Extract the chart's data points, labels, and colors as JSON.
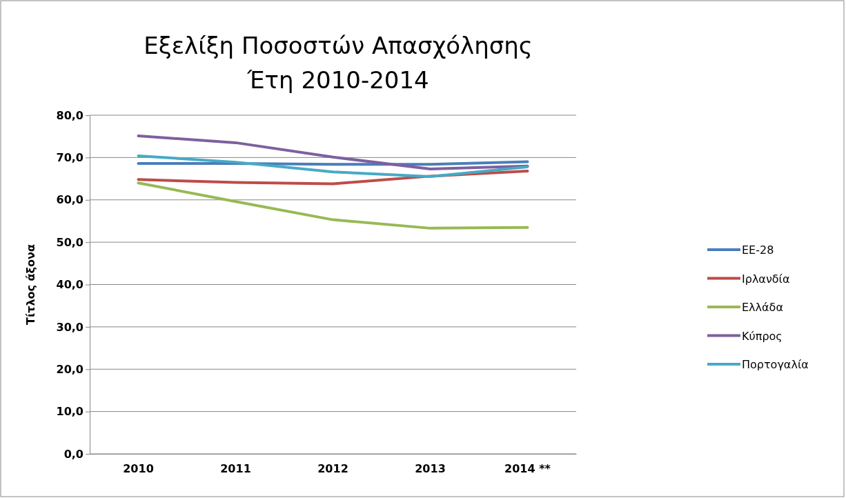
{
  "chart_data": {
    "type": "line",
    "title": "Εξελίξη Ποσοστών Απασχόλησης\nΈτη 2010-2014",
    "ylabel": "Τίτλος άξονα",
    "categories": [
      "2010",
      "2011",
      "2012",
      "2013",
      "2014 **"
    ],
    "series": [
      {
        "name": "ΕΕ-28",
        "color": "#4a7ebb",
        "values": [
          68.6,
          68.6,
          68.4,
          68.4,
          69.0
        ]
      },
      {
        "name": "Ιρλανδία",
        "color": "#be4b48",
        "values": [
          64.8,
          64.1,
          63.8,
          65.6,
          66.8
        ]
      },
      {
        "name": "Ελλάδα",
        "color": "#98b954",
        "values": [
          64.0,
          59.6,
          55.3,
          53.3,
          53.5
        ]
      },
      {
        "name": "Κύπρος",
        "color": "#7d60a0",
        "values": [
          75.1,
          73.5,
          70.1,
          67.3,
          68.0
        ]
      },
      {
        "name": "Πορτογαλία",
        "color": "#46aac5",
        "values": [
          70.4,
          68.9,
          66.6,
          65.5,
          67.8
        ]
      }
    ],
    "ylim": [
      0,
      80
    ],
    "yticks": [
      {
        "value": 0,
        "label": "0,0"
      },
      {
        "value": 10,
        "label": "10,0"
      },
      {
        "value": 20,
        "label": "20,0"
      },
      {
        "value": 30,
        "label": "30,0"
      },
      {
        "value": 40,
        "label": "40,0"
      },
      {
        "value": 50,
        "label": "50,0"
      },
      {
        "value": 60,
        "label": "60,0"
      },
      {
        "value": 70,
        "label": "70,0"
      },
      {
        "value": 80,
        "label": "80,0"
      }
    ],
    "grid": "y",
    "legend": "right",
    "marker": "none",
    "line_style": "solid"
  }
}
